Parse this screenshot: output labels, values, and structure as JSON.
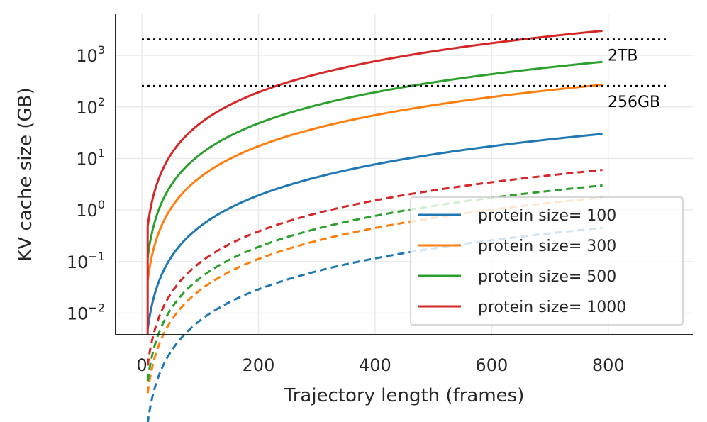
{
  "chart_data": {
    "type": "line",
    "title": "",
    "xlabel": "Trajectory length (frames)",
    "ylabel": "KV cache size (GB)",
    "xlim": [
      -45,
      945
    ],
    "ylim_log10": [
      -2.42,
      3.8
    ],
    "yscale": "log",
    "grid": true,
    "legend_position": "lower-right",
    "x_ticks": [
      {
        "value": 0,
        "label": "0"
      },
      {
        "value": 200,
        "label": "200"
      },
      {
        "value": 400,
        "label": "400"
      },
      {
        "value": 600,
        "label": "600"
      },
      {
        "value": 800,
        "label": "800"
      }
    ],
    "y_ticks": [
      {
        "exp": -2,
        "base": "10",
        "sup": "−2"
      },
      {
        "exp": -1,
        "base": "10",
        "sup": "−1"
      },
      {
        "exp": 0,
        "base": "10",
        "sup": "0"
      },
      {
        "exp": 1,
        "base": "10",
        "sup": "1"
      },
      {
        "exp": 2,
        "base": "10",
        "sup": "2"
      },
      {
        "exp": 3,
        "base": "10",
        "sup": "3"
      }
    ],
    "x_start": 10,
    "x_end": 790,
    "series": [
      {
        "name": "protein size= 100",
        "color": "#1f77b4",
        "solid_at_end": 30,
        "dashed_at_end": 0.45
      },
      {
        "name": "protein size= 300",
        "color": "#ff7f0e",
        "solid_at_end": 270,
        "dashed_at_end": 1.75
      },
      {
        "name": "protein size= 500",
        "color": "#2ca02c",
        "solid_at_end": 750,
        "dashed_at_end": 3.0
      },
      {
        "name": "protein size= 1000",
        "color": "#d62728",
        "solid_at_end": 3000,
        "dashed_at_end": 6.0
      }
    ],
    "reference_lines": [
      {
        "label": "2TB",
        "value": 2048,
        "color": "#000000"
      },
      {
        "label": "256GB",
        "value": 256,
        "color": "#000000"
      }
    ]
  }
}
